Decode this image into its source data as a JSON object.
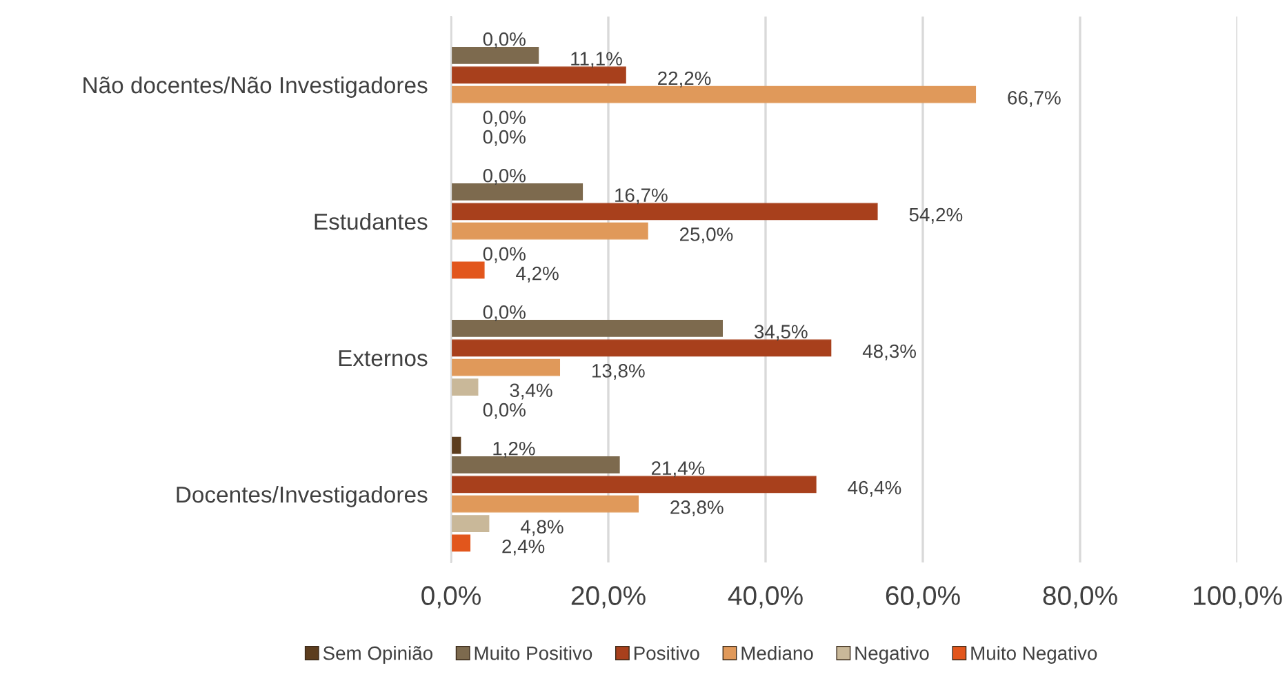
{
  "chart_data": {
    "type": "bar",
    "orientation": "horizontal",
    "categories": [
      "Não docentes/Não Investigadores",
      "Estudantes",
      "Externos",
      "Docentes/Investigadores"
    ],
    "series": [
      {
        "name": "Sem Opinião",
        "color": "#5c3d1e",
        "values": [
          0,
          0,
          0,
          1.2
        ],
        "value_labels": [
          "0,0%",
          "0,0%",
          "0,0%",
          "1,2%"
        ]
      },
      {
        "name": "Muito Positivo",
        "color": "#7d6a4e",
        "values": [
          11.1,
          16.7,
          34.5,
          21.4
        ],
        "value_labels": [
          "11,1%",
          "16,7%",
          "34,5%",
          "21,4%"
        ]
      },
      {
        "name": "Positivo",
        "color": "#a8401c",
        "values": [
          22.2,
          54.2,
          48.3,
          46.4
        ],
        "value_labels": [
          "22,2%",
          "54,2%",
          "48,3%",
          "46,4%"
        ]
      },
      {
        "name": "Mediano",
        "color": "#e0995a",
        "values": [
          66.7,
          25.0,
          13.8,
          23.8
        ],
        "value_labels": [
          "66,7%",
          "25,0%",
          "13,8%",
          "23,8%"
        ]
      },
      {
        "name": "Negativo",
        "color": "#c9b899",
        "values": [
          0,
          0,
          3.4,
          4.8
        ],
        "value_labels": [
          "0,0%",
          "0,0%",
          "3,4%",
          "4,8%"
        ]
      },
      {
        "name": "Muito Negativo",
        "color": "#e2561c",
        "values": [
          0,
          4.2,
          0,
          2.4
        ],
        "value_labels": [
          "0,0%",
          "4,2%",
          "0,0%",
          "2,4%"
        ]
      }
    ],
    "xlim": [
      0,
      100
    ],
    "xticks": [
      {
        "value": 0,
        "label": "0,0%"
      },
      {
        "value": 20,
        "label": "20,0%"
      },
      {
        "value": 40,
        "label": "40,0%"
      },
      {
        "value": 60,
        "label": "60,0%"
      },
      {
        "value": 80,
        "label": "80,0%"
      },
      {
        "value": 100,
        "label": "100,0%"
      }
    ],
    "grid": "x",
    "legend": "bottom"
  }
}
